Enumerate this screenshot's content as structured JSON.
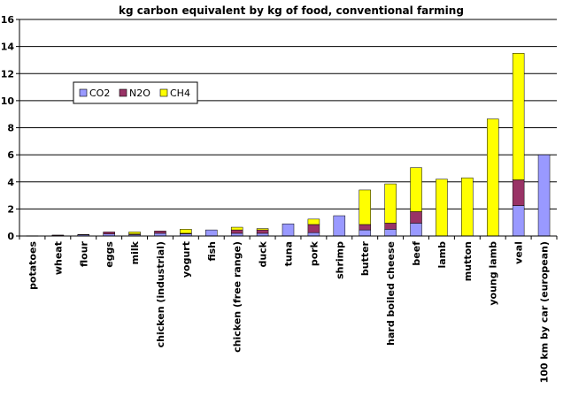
{
  "chart_data": {
    "type": "bar",
    "stacked": true,
    "title": "kg carbon equivalent by kg of food, conventional farming",
    "xlabel": "",
    "ylabel": "",
    "ylim": [
      0,
      16
    ],
    "yticks": [
      0,
      2,
      4,
      6,
      8,
      10,
      12,
      14,
      16
    ],
    "grid": "y",
    "legend": "upper-left inside plot",
    "categories": [
      "potatoes",
      "wheat",
      "flour",
      "eggs",
      "milk",
      "chicken (industrial)",
      "yogurt",
      "fish",
      "chicken (free range)",
      "duck",
      "tuna",
      "pork",
      "shrimp",
      "butter",
      "hard boiled cheese",
      "beef",
      "lamb",
      "mutton",
      "young lamb",
      "veal",
      "100 km by car (european)"
    ],
    "series": [
      {
        "name": "CO2",
        "color": "#9999ff",
        "values": [
          0.02,
          0.05,
          0.08,
          0.15,
          0.1,
          0.2,
          0.15,
          0.45,
          0.2,
          0.2,
          0.9,
          0.25,
          1.5,
          0.45,
          0.5,
          0.95,
          0.0,
          0.0,
          0.0,
          2.25,
          6.0
        ]
      },
      {
        "name": "N2O",
        "color": "#993366",
        "values": [
          0.0,
          0.02,
          0.04,
          0.15,
          0.05,
          0.17,
          0.05,
          0.0,
          0.25,
          0.25,
          0.0,
          0.6,
          0.0,
          0.4,
          0.45,
          0.85,
          0.0,
          0.0,
          0.0,
          1.9,
          0.0
        ]
      },
      {
        "name": "CH4",
        "color": "#ffff00",
        "values": [
          0.0,
          0.0,
          0.0,
          0.0,
          0.15,
          0.0,
          0.3,
          0.0,
          0.2,
          0.1,
          0.0,
          0.4,
          0.0,
          2.55,
          2.9,
          3.25,
          4.2,
          4.3,
          8.65,
          9.35,
          0.0
        ]
      }
    ]
  }
}
